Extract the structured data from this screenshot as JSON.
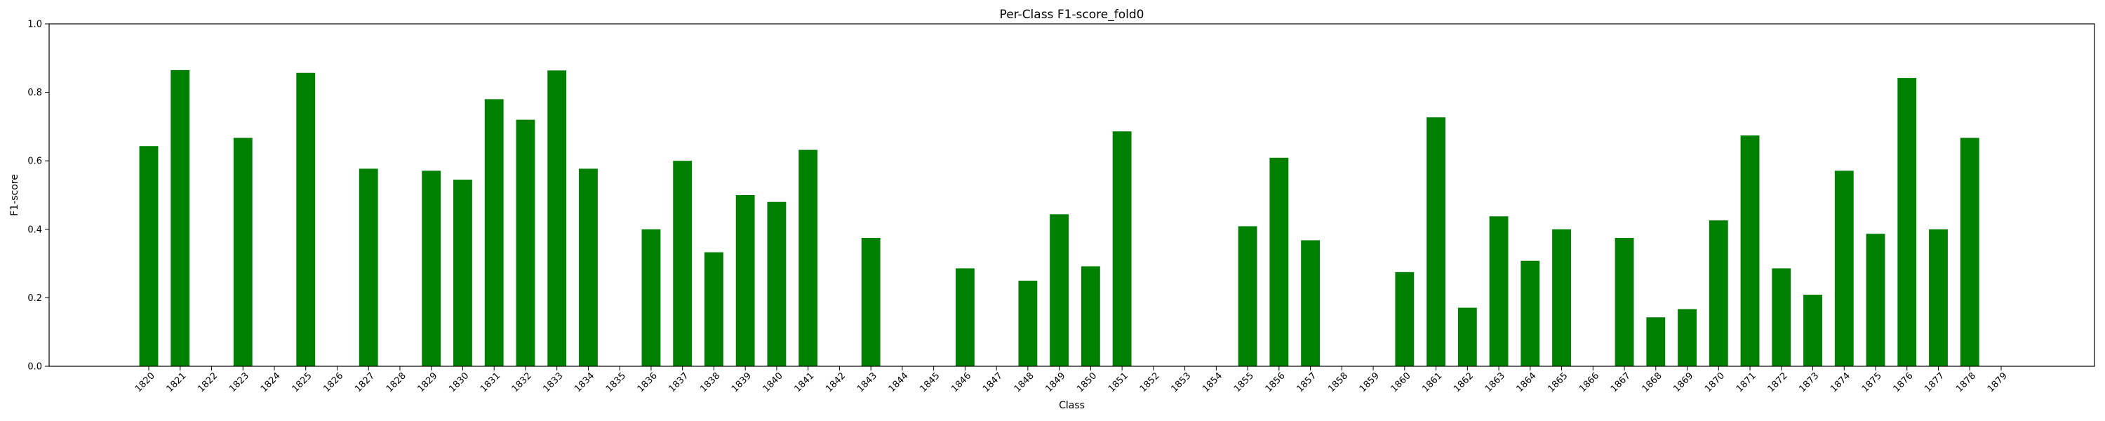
{
  "chart_data": {
    "type": "bar",
    "title": "Per-Class F1-score_fold0",
    "xlabel": "Class",
    "ylabel": "F1-score",
    "ylim": [
      0,
      1.0
    ],
    "yticks": [
      "0.0",
      "0.2",
      "0.4",
      "0.6",
      "0.8",
      "1.0"
    ],
    "grid": false,
    "legend": "none",
    "bar_color": "#008000",
    "categories": [
      "1820",
      "1821",
      "1822",
      "1823",
      "1824",
      "1825",
      "1826",
      "1827",
      "1828",
      "1829",
      "1830",
      "1831",
      "1832",
      "1833",
      "1834",
      "1835",
      "1836",
      "1837",
      "1838",
      "1839",
      "1840",
      "1841",
      "1842",
      "1843",
      "1844",
      "1845",
      "1846",
      "1847",
      "1848",
      "1849",
      "1850",
      "1851",
      "1852",
      "1853",
      "1854",
      "1855",
      "1856",
      "1857",
      "1858",
      "1859",
      "1860",
      "1861",
      "1862",
      "1863",
      "1864",
      "1865",
      "1866",
      "1867",
      "1868",
      "1869",
      "1870",
      "1871",
      "1872",
      "1873",
      "1874",
      "1875",
      "1876",
      "1877",
      "1878",
      "1879"
    ],
    "values": [
      0.643,
      0.865,
      0,
      0.667,
      0,
      0.857,
      0,
      0.577,
      0,
      0.571,
      0.545,
      0.78,
      0.72,
      0.864,
      0.577,
      0,
      0.4,
      0.6,
      0.333,
      0.5,
      0.48,
      0.632,
      0,
      0.375,
      0,
      0,
      0.286,
      0,
      0.25,
      0.444,
      0.292,
      0.686,
      0,
      0,
      0,
      0.409,
      0.609,
      0.368,
      0,
      0,
      0.275,
      0.727,
      0.171,
      0.438,
      0.308,
      0.4,
      0,
      0.375,
      0.143,
      0.167,
      0.426,
      0.674,
      0.286,
      0.209,
      0.571,
      0.387,
      0.842,
      0.4,
      0.667,
      0
    ]
  }
}
